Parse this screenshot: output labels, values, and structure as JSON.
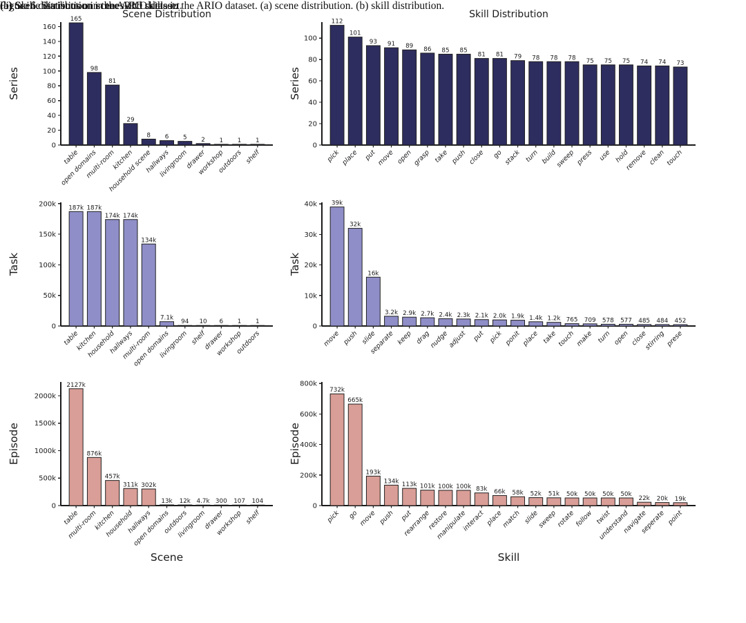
{
  "page": {
    "caption_a": "(a) Scene distribution in the ARIO dataset.",
    "caption_b": "(b) Skill distribution in the ARIO dataset.",
    "figure_caption": "Figure 6. Statistics on scenes and skills in the ARIO dataset. (a) scene distribution. (b) skill distribution."
  },
  "colors": {
    "series_bar": "#2e2d5f",
    "task_bar": "#8f8ec8",
    "episode_bar": "#d99e97",
    "bar_edge": "#1f1f1f",
    "axis": "#1a1a1a"
  },
  "chart_data": [
    {
      "id": "scene-series",
      "type": "bar",
      "title": "Scene Distribution",
      "xlabel": "",
      "ylabel": "Series",
      "categories": [
        "table",
        "open domains",
        "multi-room",
        "kitchen",
        "household scene",
        "hallways",
        "livingroom",
        "drawer",
        "workshop",
        "outdoors",
        "shelf"
      ],
      "values": [
        165,
        98,
        81,
        29,
        8,
        6,
        5,
        2,
        1,
        1,
        1
      ],
      "value_labels": [
        "165",
        "98",
        "81",
        "29",
        "8",
        "6",
        "5",
        "2",
        "1",
        "1",
        "1"
      ],
      "ylim": [
        0,
        166
      ],
      "ytick_values": [
        0,
        20,
        40,
        60,
        80,
        100,
        120,
        140,
        160
      ],
      "ytick_labels": [
        "0",
        "20",
        "40",
        "60",
        "80",
        "100",
        "120",
        "140",
        "160"
      ],
      "bar_color": "#2e2d5f",
      "grid": false,
      "legend": null
    },
    {
      "id": "skill-series",
      "type": "bar",
      "title": "Skill Distribution",
      "xlabel": "",
      "ylabel": "Series",
      "categories": [
        "pick",
        "place",
        "put",
        "move",
        "open",
        "grasp",
        "take",
        "push",
        "close",
        "go",
        "stack",
        "turn",
        "build",
        "sweep",
        "press",
        "use",
        "hold",
        "remove",
        "clean",
        "touch"
      ],
      "values": [
        112,
        101,
        93,
        91,
        89,
        86,
        85,
        85,
        81,
        81,
        79,
        78,
        78,
        78,
        75,
        75,
        75,
        74,
        74,
        73
      ],
      "value_labels": [
        "112",
        "101",
        "93",
        "91",
        "89",
        "86",
        "85",
        "85",
        "81",
        "81",
        "79",
        "78",
        "78",
        "78",
        "75",
        "75",
        "75",
        "74",
        "74",
        "73"
      ],
      "ylim": [
        0,
        115
      ],
      "ytick_values": [
        0,
        20,
        40,
        60,
        80,
        100
      ],
      "ytick_labels": [
        "0",
        "20",
        "40",
        "60",
        "80",
        "100"
      ],
      "bar_color": "#2e2d5f",
      "grid": false,
      "legend": null
    },
    {
      "id": "scene-task",
      "type": "bar",
      "title": "",
      "xlabel": "",
      "ylabel": "Task",
      "categories": [
        "table",
        "kitchen",
        "household",
        "hallways",
        "multi-room",
        "open domains",
        "livingroom",
        "shelf",
        "drawer",
        "workshop",
        "outdoors"
      ],
      "values": [
        187,
        187,
        174,
        174,
        134,
        7.1,
        0.094,
        0.01,
        0.006,
        0.001,
        0.001
      ],
      "value_labels": [
        "187k",
        "187k",
        "174k",
        "174k",
        "134k",
        "7.1k",
        "94",
        "10",
        "6",
        "1",
        "1"
      ],
      "ylim": [
        0,
        202
      ],
      "ytick_values": [
        0,
        50,
        100,
        150,
        200
      ],
      "ytick_labels": [
        "0",
        "50k",
        "100k",
        "150k",
        "200k"
      ],
      "bar_color": "#8f8ec8",
      "grid": false,
      "legend": null
    },
    {
      "id": "skill-task",
      "type": "bar",
      "title": "",
      "xlabel": "",
      "ylabel": "Task",
      "categories": [
        "move",
        "push",
        "slide",
        "separate",
        "keep",
        "drag",
        "nudge",
        "adjust",
        "put",
        "pick",
        "ponit",
        "place",
        "take",
        "touch",
        "make",
        "turn",
        "open",
        "close",
        "stirring",
        "prese"
      ],
      "values": [
        39,
        32,
        16,
        3.2,
        2.9,
        2.7,
        2.4,
        2.3,
        2.1,
        2.0,
        1.9,
        1.4,
        1.2,
        0.765,
        0.709,
        0.578,
        0.577,
        0.485,
        0.484,
        0.452
      ],
      "value_labels": [
        "39k",
        "32k",
        "16k",
        "3.2k",
        "2.9k",
        "2.7k",
        "2.4k",
        "2.3k",
        "2.1k",
        "2.0k",
        "1.9k",
        "1.4k",
        "1.2k",
        "765",
        "709",
        "578",
        "577",
        "485",
        "484",
        "452"
      ],
      "ylim": [
        0,
        40.5
      ],
      "ytick_values": [
        0,
        10,
        20,
        30,
        40
      ],
      "ytick_labels": [
        "0",
        "10k",
        "20k",
        "30k",
        "40k"
      ],
      "bar_color": "#8f8ec8",
      "grid": false,
      "legend": null
    },
    {
      "id": "scene-episode",
      "type": "bar",
      "title": "",
      "xlabel": "Scene",
      "ylabel": "Episode",
      "categories": [
        "table",
        "multi-room",
        "kitchen",
        "household",
        "hallways",
        "open domains",
        "outdoors",
        "livingroom",
        "drawer",
        "workshop",
        "shelf"
      ],
      "values": [
        2127,
        876,
        457,
        311,
        302,
        13,
        12,
        4.7,
        0.3,
        0.107,
        0.104
      ],
      "value_labels": [
        "2127k",
        "876k",
        "457k",
        "311k",
        "302k",
        "13k",
        "12k",
        "4.7k",
        "300",
        "107",
        "104"
      ],
      "ylim": [
        0,
        2250
      ],
      "ytick_values": [
        0,
        500,
        1000,
        1500,
        2000
      ],
      "ytick_labels": [
        "0",
        "500k",
        "1000k",
        "1500k",
        "2000k"
      ],
      "bar_color": "#d99e97",
      "grid": false,
      "legend": null
    },
    {
      "id": "skill-episode",
      "type": "bar",
      "title": "",
      "xlabel": "Skill",
      "ylabel": "Episode",
      "categories": [
        "pick",
        "go",
        "move",
        "push",
        "put",
        "rearrange",
        "restore",
        "manipulate",
        "interact",
        "place",
        "match",
        "slide",
        "sweep",
        "rotate",
        "follow",
        "twist",
        "understand",
        "navigate",
        "seperate",
        "point"
      ],
      "values": [
        732,
        665,
        193,
        134,
        113,
        101,
        100,
        100,
        83,
        66,
        58,
        52,
        51,
        50,
        50,
        50,
        50,
        22,
        20,
        19
      ],
      "value_labels": [
        "732k",
        "665k",
        "193k",
        "134k",
        "113k",
        "101k",
        "100k",
        "100k",
        "83k",
        "66k",
        "58k",
        "52k",
        "51k",
        "50k",
        "50k",
        "50k",
        "50k",
        "22k",
        "20k",
        "19k"
      ],
      "ylim": [
        0,
        810
      ],
      "ytick_values": [
        0,
        200,
        400,
        600,
        800
      ],
      "ytick_labels": [
        "0",
        "200k",
        "400k",
        "600k",
        "800k"
      ],
      "bar_color": "#d99e97",
      "grid": false,
      "legend": null
    }
  ]
}
